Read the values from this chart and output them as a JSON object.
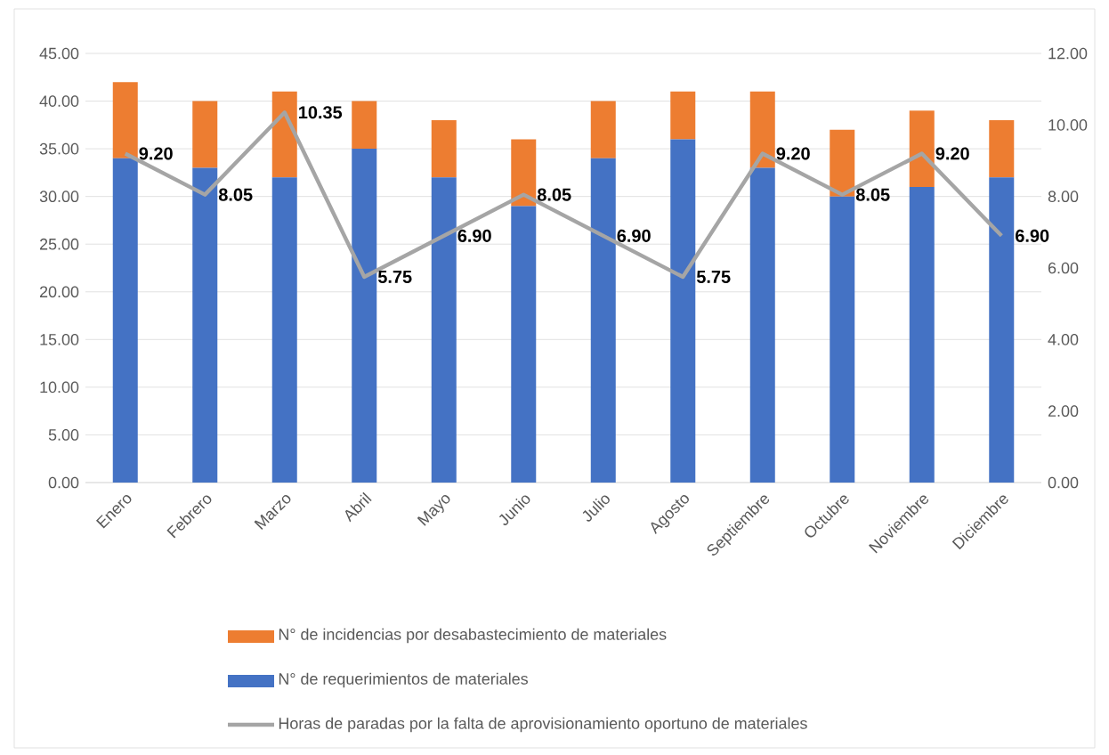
{
  "chart_data": {
    "type": "bar",
    "stacked": true,
    "grid": "y",
    "legend": "bottom",
    "categories": [
      "Enero",
      "Febrero",
      "Marzo",
      "Abril",
      "Mayo",
      "Junio",
      "Julio",
      "Agosto",
      "Septiembre",
      "Octubre",
      "Noviembre",
      "Diciembre"
    ],
    "series": [
      {
        "name": "N° de requerimientos de materiales",
        "color": "#4472c4",
        "values": [
          34,
          33,
          32,
          35,
          32,
          29,
          34,
          36,
          33,
          30,
          31,
          32
        ]
      },
      {
        "name": "N° de incidencias por desabastecimiento de materiales",
        "color": "#ed7d31",
        "values": [
          8,
          7,
          9,
          5,
          6,
          7,
          6,
          5,
          8,
          7,
          8,
          6
        ]
      },
      {
        "name": "Horas de paradas por la falta de aprovisionamiento oportuno de materiales",
        "type": "line",
        "axis": "y2",
        "color": "#a5a5a5",
        "values": [
          9.2,
          8.05,
          10.35,
          5.75,
          6.9,
          8.05,
          6.9,
          5.75,
          9.2,
          8.05,
          9.2,
          6.9
        ],
        "value_labels": [
          "9.20",
          "8.05",
          "10.35",
          "5.75",
          "6.90",
          "8.05",
          "6.90",
          "5.75",
          "9.20",
          "8.05",
          "9.20",
          "6.90"
        ]
      }
    ],
    "ylim": [
      0,
      45
    ],
    "yticks": [
      {
        "value": 0,
        "label": "0.00"
      },
      {
        "value": 5,
        "label": "5.00"
      },
      {
        "value": 10,
        "label": "10.00"
      },
      {
        "value": 15,
        "label": "15.00"
      },
      {
        "value": 20,
        "label": "20.00"
      },
      {
        "value": 25,
        "label": "25.00"
      },
      {
        "value": 30,
        "label": "30.00"
      },
      {
        "value": 35,
        "label": "35.00"
      },
      {
        "value": 40,
        "label": "40.00"
      },
      {
        "value": 45,
        "label": "45.00"
      }
    ],
    "y2lim": [
      0,
      12
    ],
    "y2ticks": [
      {
        "value": 0,
        "label": "0.00"
      },
      {
        "value": 2,
        "label": "2.00"
      },
      {
        "value": 4,
        "label": "4.00"
      },
      {
        "value": 6,
        "label": "6.00"
      },
      {
        "value": 8,
        "label": "8.00"
      },
      {
        "value": 10,
        "label": "10.00"
      },
      {
        "value": 12,
        "label": "12.00"
      }
    ]
  }
}
